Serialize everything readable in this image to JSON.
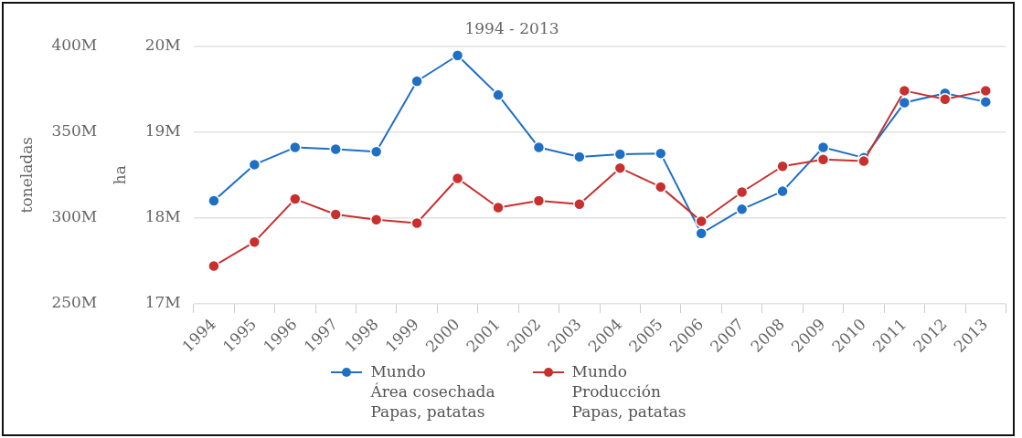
{
  "chart_data": {
    "type": "line",
    "title": "1994 - 2013",
    "ylabel": "toneladas",
    "y2label": "ha",
    "categories": [
      "1994",
      "1995",
      "1996",
      "1997",
      "1998",
      "1999",
      "2000",
      "2001",
      "2002",
      "2003",
      "2004",
      "2005",
      "2006",
      "2007",
      "2008",
      "2009",
      "2010",
      "2011",
      "2012",
      "2013"
    ],
    "series": [
      {
        "name": "Mundo\nÁrea cosechada\nPapas, patatas",
        "color": "#1f6fc5",
        "axis": "y2",
        "values": [
          18200000,
          18620000,
          18820000,
          18800000,
          18770000,
          19590000,
          19890000,
          19430000,
          18820000,
          18710000,
          18740000,
          18750000,
          17820000,
          18100000,
          18310000,
          18820000,
          18700000,
          19340000,
          19450000,
          19350000
        ]
      },
      {
        "name": "Mundo\nProducción\nPapas, patatas",
        "color": "#c8302f",
        "values": [
          272000000,
          286000000,
          311000000,
          302000000,
          299000000,
          297000000,
          323000000,
          306000000,
          310000000,
          308000000,
          329000000,
          318000000,
          298000000,
          315000000,
          330000000,
          334000000,
          333000000,
          374000000,
          369000000,
          374000000
        ]
      }
    ],
    "ylim": [
      250000000,
      400000000
    ],
    "yticks": [
      {
        "value": 250000000,
        "label": "250M"
      },
      {
        "value": 300000000,
        "label": "300M"
      },
      {
        "value": 350000000,
        "label": "350M"
      },
      {
        "value": 400000000,
        "label": "400M"
      }
    ],
    "y2lim": [
      17000000,
      20000000
    ],
    "y2ticks": [
      {
        "value": 17000000,
        "label": "17M"
      },
      {
        "value": 18000000,
        "label": "18M"
      },
      {
        "value": 19000000,
        "label": "19M"
      },
      {
        "value": 20000000,
        "label": "20M"
      }
    ],
    "grid": "y",
    "legend": "bottom",
    "marker": "circle",
    "line_style": "solid"
  }
}
